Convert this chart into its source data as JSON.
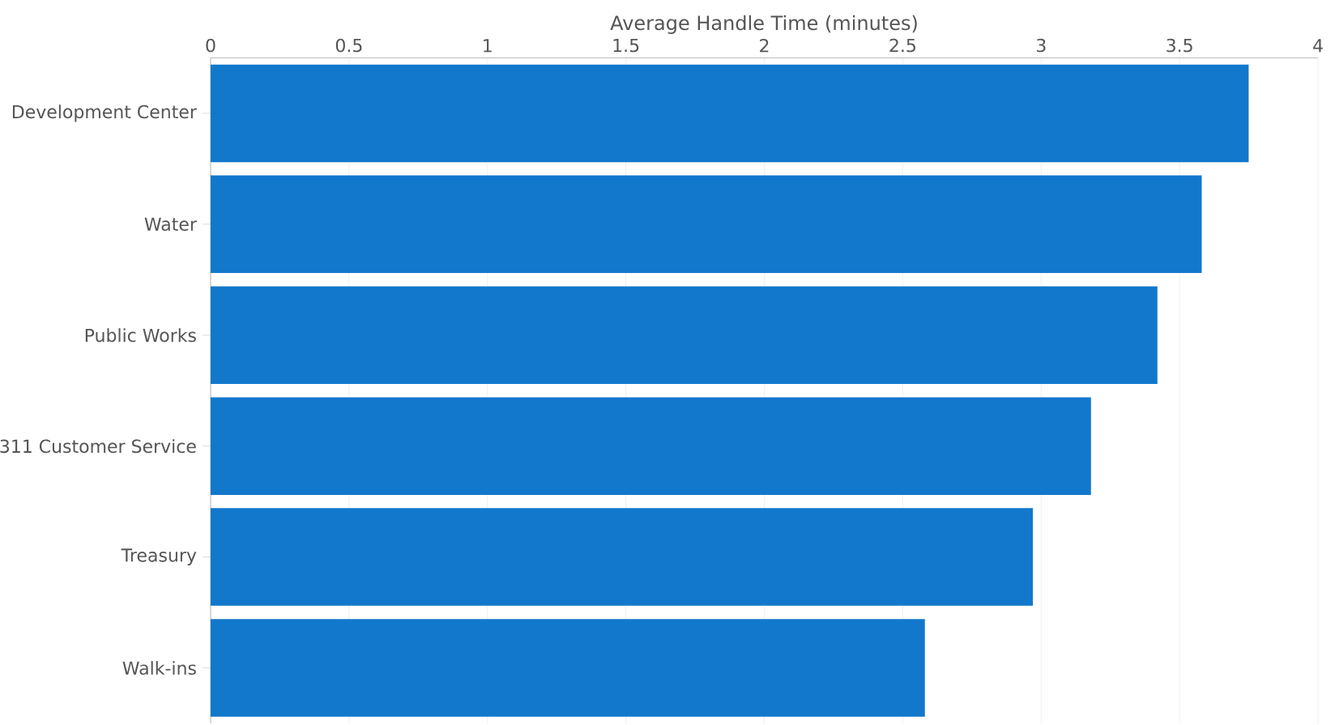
{
  "chart_data": {
    "type": "bar",
    "orientation": "horizontal",
    "xlabel": "Average Handle Time (minutes)",
    "categories": [
      "Development Center",
      "Water",
      "Public Works",
      "311 Customer Service",
      "Treasury",
      "Walk-ins"
    ],
    "values": [
      3.75,
      3.58,
      3.42,
      3.18,
      2.97,
      2.58
    ],
    "color": "#1278cc",
    "xlim": [
      0,
      4
    ],
    "xticks": [
      0,
      0.5,
      1,
      1.5,
      2,
      2.5,
      3,
      3.5,
      4
    ],
    "grid": "x"
  }
}
